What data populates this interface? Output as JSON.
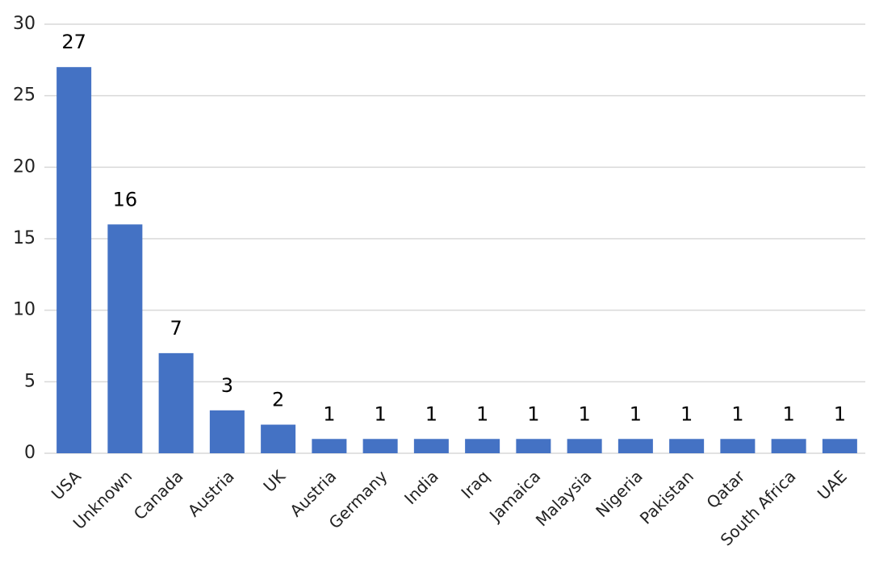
{
  "chart_data": {
    "type": "bar",
    "categories": [
      "USA",
      "Unknown",
      "Canada",
      "Austria",
      "UK",
      "Austria",
      "Germany",
      "India",
      "Iraq",
      "Jamaica",
      "Malaysia",
      "Nigeria",
      "Pakistan",
      "Qatar",
      "South Africa",
      "UAE"
    ],
    "values": [
      27,
      16,
      7,
      3,
      2,
      1,
      1,
      1,
      1,
      1,
      1,
      1,
      1,
      1,
      1,
      1
    ],
    "color": "#4472c4",
    "ylim": [
      0,
      30
    ],
    "yticks": [
      0,
      5,
      10,
      15,
      20,
      25,
      30
    ],
    "grid": true
  }
}
